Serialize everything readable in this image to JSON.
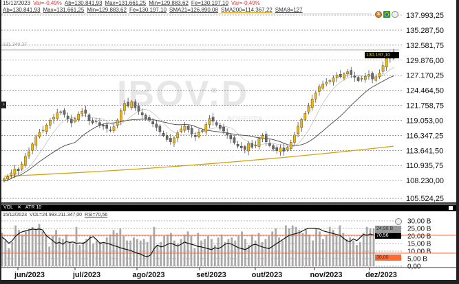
{
  "header": {
    "date": "15/12/2023",
    "var": "Var=-0,49%",
    "ab": "Ab=130.841,93",
    "max": "Max=131.661,25",
    "min": "Min=129.883,62",
    "fe": "Fe=130.197,10",
    "var2": "Var=-0,49%",
    "ab2": "Ab=130.841,93",
    "max2": "Max=131.661,25",
    "min2": "Min=129.883,62",
    "fe2": "Fe=130.197,10",
    "sma21": "SMA21=126.890,08",
    "sma200": "SMA200=114.367,22",
    "sma8": "SMA8=127"
  },
  "watermark": {
    "ticker": "IBOV:D",
    "exchange": "BOVESPA"
  },
  "hline_label": "131.340,37",
  "price_tag": "130.197,10",
  "colors": {
    "up": "#f2b705",
    "down": "#6b6b6b",
    "sma21": "#555555",
    "sma200": "#d4a20a",
    "rsi": "#111111",
    "rsi_band": "#ff6a33",
    "volume": "#a9a9a9"
  },
  "chart_data": [
    {
      "type": "candlestick",
      "title": "IBOV:D",
      "yticks": [
        "137.993,25",
        "135.287,50",
        "132.581,75",
        "129.876,00",
        "127.170,25",
        "124.464,50",
        "121.758,75",
        "119.053,00",
        "116.347,25",
        "113.641,50",
        "110.935,75",
        "108.230,00",
        "105.524,25"
      ],
      "ylim": [
        105524.25,
        137993.25
      ],
      "closes_k": [
        108.5,
        108.9,
        109.6,
        110.3,
        110.0,
        111.2,
        112.6,
        113.4,
        114.8,
        116.1,
        116.9,
        117.3,
        118.2,
        119.0,
        119.6,
        120.4,
        120.6,
        120.1,
        119.3,
        118.6,
        119.4,
        120.2,
        120.7,
        120.3,
        119.0,
        118.6,
        118.9,
        118.2,
        118.0,
        117.6,
        117.2,
        117.9,
        119.1,
        120.8,
        122.1,
        121.6,
        122.4,
        121.3,
        120.7,
        120.0,
        119.3,
        119.1,
        118.4,
        117.8,
        117.0,
        116.3,
        115.6,
        115.2,
        115.9,
        116.8,
        117.5,
        118.0,
        117.4,
        116.6,
        116.1,
        116.9,
        117.2,
        118.3,
        119.4,
        118.9,
        118.2,
        117.6,
        117.1,
        116.4,
        115.7,
        115.0,
        114.4,
        114.1,
        113.8,
        114.9,
        114.2,
        114.6,
        115.8,
        116.3,
        115.2,
        114.5,
        113.9,
        113.6,
        114.1,
        113.5,
        114.2,
        115.1,
        116.4,
        118.0,
        119.2,
        120.3,
        121.6,
        122.9,
        124.0,
        125.1,
        125.6,
        125.9,
        126.2,
        126.7,
        127.1,
        126.9,
        127.4,
        127.8,
        127.3,
        126.8,
        126.2,
        126.6,
        127.0,
        127.3,
        126.5,
        126.9,
        127.6,
        128.9,
        130.2,
        131.1,
        130.197
      ],
      "sma200_k": [
        109.0,
        114.4
      ],
      "hline": 131340.37
    },
    {
      "type": "bar+line",
      "title": "VOL / RSI",
      "info": {
        "date": "15/12/2023",
        "vol": "VOL=24.993.211.347,00",
        "rsi": "RSI=70,56"
      },
      "yticks": [
        "30,00 B",
        "25,00 B",
        "20,00 B",
        "15,00 B",
        "10,00 B",
        "5,00 B",
        "0,00"
      ],
      "ylim": [
        0,
        30
      ],
      "tags": {
        "vol": "24,99 B",
        "rsi": "70,56",
        "rsi_low": "30,00"
      },
      "volume_b": [
        22,
        17,
        12,
        16,
        27,
        24,
        21,
        23,
        25,
        26,
        24,
        28,
        23,
        21,
        13,
        20,
        24,
        19,
        18,
        21,
        16,
        15,
        26,
        14,
        16,
        18,
        20,
        15,
        17,
        16,
        15,
        19,
        21,
        24,
        22,
        25,
        20,
        17,
        17,
        19,
        18,
        17,
        18,
        16,
        20,
        26,
        14,
        16,
        20,
        21,
        22,
        17,
        15,
        18,
        21,
        23,
        20,
        12,
        22,
        17,
        18,
        20,
        18,
        14,
        19,
        21,
        16,
        18,
        19,
        17,
        20,
        23,
        18,
        14,
        21,
        17,
        22,
        16,
        18,
        20,
        23,
        25,
        19,
        17,
        27,
        25,
        27,
        26,
        24,
        22,
        24,
        21,
        17,
        25,
        23,
        18,
        21,
        26,
        24,
        20,
        27,
        22,
        18,
        19,
        17,
        14,
        16,
        22,
        26,
        25,
        25
      ],
      "rsi": [
        66,
        60,
        52,
        58,
        68,
        74,
        78,
        80,
        82,
        84,
        83,
        84,
        82,
        70,
        64,
        58,
        52,
        54,
        50,
        56,
        54,
        55,
        52,
        53,
        52,
        56,
        64,
        67,
        60,
        52,
        54,
        52,
        50,
        47,
        45,
        42,
        40,
        38,
        36,
        33,
        30,
        28,
        24,
        22,
        26,
        40,
        48,
        44,
        46,
        50,
        52,
        49,
        46,
        50,
        55,
        52,
        50,
        48,
        45,
        44,
        42,
        40,
        38,
        42,
        40,
        44,
        50,
        52,
        50,
        46,
        42,
        40,
        38,
        42,
        48,
        50,
        47,
        44,
        42,
        40,
        45,
        50,
        55,
        60,
        65,
        70,
        72,
        74,
        76,
        80,
        84,
        86,
        86,
        85,
        84,
        80,
        78,
        76,
        74,
        72,
        70,
        64,
        58,
        56,
        62,
        58,
        65,
        72,
        70,
        73,
        70.56
      ],
      "rsi_levels": [
        70,
        30
      ]
    }
  ],
  "xaxis": [
    "jun/2023",
    "jul/2023",
    "ago/2023",
    "set/2023",
    "out/2023",
    "nov/2023",
    "dez/2023"
  ],
  "subpane": {
    "tab1": "VOL",
    "close": "✕",
    "tab2": "ATR 10"
  }
}
